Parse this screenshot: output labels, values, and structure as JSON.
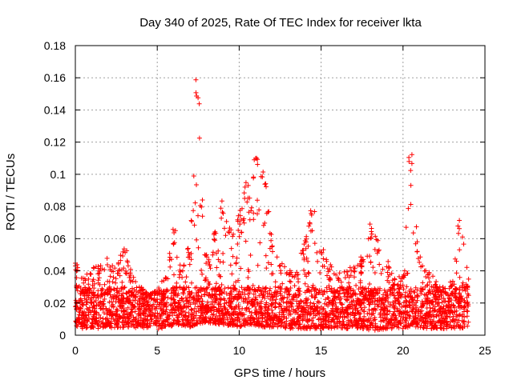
{
  "chart_data": {
    "type": "scatter",
    "title": "Day 340 of 2025, Rate Of TEC Index for receiver lkta",
    "xlabel": "GPS time / hours",
    "ylabel": "ROTI / TECUs",
    "xlim": [
      0,
      25
    ],
    "ylim": [
      0,
      0.18
    ],
    "x_ticks": [
      0,
      5,
      10,
      15,
      20,
      25
    ],
    "x_tick_labels": [
      "0",
      "5",
      "10",
      "15",
      "20",
      "25"
    ],
    "y_ticks": [
      0,
      0.02,
      0.04,
      0.06,
      0.08,
      0.1,
      0.12,
      0.14,
      0.16,
      0.18
    ],
    "y_tick_labels": [
      "0",
      "0.02",
      "0.04",
      "0.06",
      "0.08",
      "0.1",
      "0.12",
      "0.14",
      "0.16",
      "0.18"
    ],
    "grid": true,
    "marker": "+",
    "series_color": "#ff0000",
    "series": [
      {
        "name": "ROTI",
        "envelope": {
          "x": [
            0,
            0.5,
            1,
            1.5,
            2,
            2.5,
            3,
            3.5,
            4,
            4.5,
            5,
            5.5,
            6,
            6.5,
            7,
            7.5,
            8,
            8.5,
            9,
            9.5,
            10,
            10.5,
            11,
            11.5,
            12,
            12.5,
            13,
            13.5,
            14,
            14.5,
            15,
            15.5,
            16,
            16.5,
            17,
            17.5,
            18,
            18.5,
            19,
            19.5,
            20,
            20.5,
            21,
            21.5,
            22,
            22.5,
            23,
            23.5,
            24
          ],
          "y_max": [
            0.045,
            0.038,
            0.042,
            0.044,
            0.048,
            0.045,
            0.055,
            0.038,
            0.03,
            0.025,
            0.028,
            0.038,
            0.066,
            0.04,
            0.055,
            0.165,
            0.05,
            0.065,
            0.085,
            0.07,
            0.08,
            0.095,
            0.113,
            0.105,
            0.06,
            0.045,
            0.042,
            0.04,
            0.06,
            0.078,
            0.055,
            0.045,
            0.04,
            0.04,
            0.045,
            0.05,
            0.07,
            0.06,
            0.048,
            0.035,
            0.04,
            0.116,
            0.055,
            0.04,
            0.035,
            0.03,
            0.035,
            0.072,
            0.035
          ],
          "y_min": [
            0.005,
            0.004,
            0.005,
            0.004,
            0.005,
            0.004,
            0.005,
            0.005,
            0.004,
            0.005,
            0.003,
            0.005,
            0.006,
            0.006,
            0.005,
            0.007,
            0.008,
            0.007,
            0.006,
            0.006,
            0.005,
            0.006,
            0.006,
            0.005,
            0.005,
            0.005,
            0.004,
            0.004,
            0.004,
            0.004,
            0.004,
            0.004,
            0.005,
            0.004,
            0.004,
            0.004,
            0.003,
            0.003,
            0.004,
            0.004,
            0.004,
            0.005,
            0.005,
            0.004,
            0.004,
            0.004,
            0.004,
            0.004,
            0.005
          ]
        }
      }
    ]
  }
}
